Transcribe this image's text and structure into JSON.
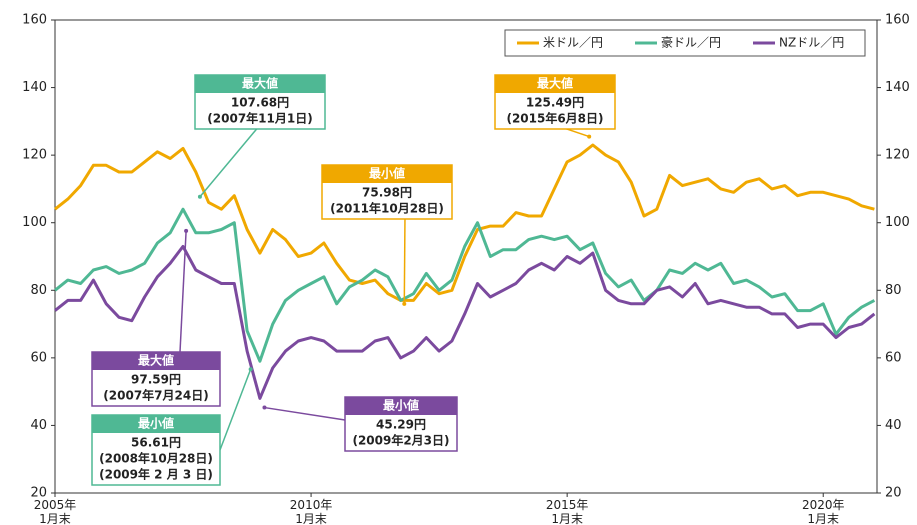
{
  "chart_data": {
    "type": "line",
    "x": [
      2005,
      2005.25,
      2005.5,
      2005.75,
      2006,
      2006.25,
      2006.5,
      2006.75,
      2007,
      2007.25,
      2007.5,
      2007.75,
      2008,
      2008.25,
      2008.5,
      2008.75,
      2009,
      2009.25,
      2009.5,
      2009.75,
      2010,
      2010.25,
      2010.5,
      2010.75,
      2011,
      2011.25,
      2011.5,
      2011.75,
      2012,
      2012.25,
      2012.5,
      2012.75,
      2013,
      2013.25,
      2013.5,
      2013.75,
      2014,
      2014.25,
      2014.5,
      2014.75,
      2015,
      2015.25,
      2015.5,
      2015.75,
      2016,
      2016.25,
      2016.5,
      2016.75,
      2017,
      2017.25,
      2017.5,
      2017.75,
      2018,
      2018.25,
      2018.5,
      2018.75,
      2019,
      2019.25,
      2019.5,
      2019.75,
      2020,
      2020.25,
      2020.5,
      2020.75,
      2021
    ],
    "series": [
      {
        "name": "米ドル／円",
        "color": "#f0a800",
        "values": [
          104,
          107,
          111,
          117,
          117,
          115,
          115,
          118,
          121,
          119,
          122,
          115,
          106,
          104,
          108,
          98,
          91,
          98,
          95,
          90,
          91,
          94,
          88,
          83,
          82,
          83,
          79,
          77,
          77,
          82,
          79,
          80,
          90,
          98,
          99,
          99,
          103,
          102,
          102,
          110,
          118,
          120,
          123,
          120,
          118,
          112,
          102,
          104,
          114,
          111,
          112,
          113,
          110,
          109,
          112,
          113,
          110,
          111,
          108,
          109,
          109,
          108,
          107,
          105,
          104
        ]
      },
      {
        "name": "豪ドル／円",
        "color": "#4fb894",
        "values": [
          80,
          83,
          82,
          86,
          87,
          85,
          86,
          88,
          94,
          97,
          104,
          97,
          97,
          98,
          100,
          68,
          59,
          70,
          77,
          80,
          82,
          84,
          76,
          81,
          83,
          86,
          84,
          77,
          79,
          85,
          80,
          83,
          93,
          100,
          90,
          92,
          92,
          95,
          96,
          95,
          96,
          92,
          94,
          85,
          81,
          83,
          77,
          80,
          86,
          85,
          88,
          86,
          88,
          82,
          83,
          81,
          78,
          79,
          74,
          74,
          76,
          67,
          72,
          75,
          77
        ]
      },
      {
        "name": "NZドル／円",
        "color": "#7b4a9e",
        "values": [
          74,
          77,
          77,
          83,
          76,
          72,
          71,
          78,
          84,
          88,
          93,
          86,
          84,
          82,
          82,
          62,
          48,
          57,
          62,
          65,
          66,
          65,
          62,
          62,
          62,
          65,
          66,
          60,
          62,
          66,
          62,
          65,
          73,
          82,
          78,
          80,
          82,
          86,
          88,
          86,
          90,
          88,
          91,
          80,
          77,
          76,
          76,
          80,
          81,
          78,
          82,
          76,
          77,
          76,
          75,
          75,
          73,
          73,
          69,
          70,
          70,
          66,
          69,
          70,
          73
        ]
      }
    ],
    "xlim": [
      2005,
      2021.05
    ],
    "xticks": [
      {
        "value": 2005,
        "label": "2005年\n1月末"
      },
      {
        "value": 2010,
        "label": "2010年\n1月末"
      },
      {
        "value": 2015,
        "label": "2015年\n1月末"
      },
      {
        "value": 2020,
        "label": "2020年\n1月末"
      }
    ],
    "ylim": [
      20,
      160
    ],
    "yticks": [
      20,
      40,
      60,
      80,
      100,
      120,
      140,
      160
    ],
    "y2lim": [
      20,
      160
    ],
    "y2ticks": [
      20,
      40,
      60,
      80,
      100,
      120,
      140,
      160
    ],
    "legend": "upper right",
    "annotations": [
      {
        "label": "最大値",
        "value": 107.68,
        "value_label": "107.68円",
        "dates": [
          "(2007年11月1日)"
        ],
        "x": 2007.83,
        "color": "#4fb894"
      },
      {
        "label": "最大値",
        "value": 125.49,
        "value_label": "125.49円",
        "dates": [
          "(2015年6月8日)"
        ],
        "x": 2015.43,
        "color": "#f0a800"
      },
      {
        "label": "最小値",
        "value": 75.98,
        "value_label": "75.98円",
        "dates": [
          "(2011年10月28日)"
        ],
        "x": 2011.82,
        "color": "#f0a800"
      },
      {
        "label": "最大値",
        "value": 97.59,
        "value_label": "97.59円",
        "dates": [
          "(2007年7月24日)"
        ],
        "x": 2007.56,
        "color": "#7b4a9e"
      },
      {
        "label": "最小値",
        "value": 56.61,
        "value_label": "56.61円",
        "dates": [
          "(2008年10月28日)",
          "(2009年 2 月 3 日)"
        ],
        "x": 2008.82,
        "color": "#4fb894"
      },
      {
        "label": "最小値",
        "value": 45.29,
        "value_label": "45.29円",
        "dates": [
          "(2009年2月3日)"
        ],
        "x": 2009.09,
        "color": "#7b4a9e"
      }
    ]
  }
}
